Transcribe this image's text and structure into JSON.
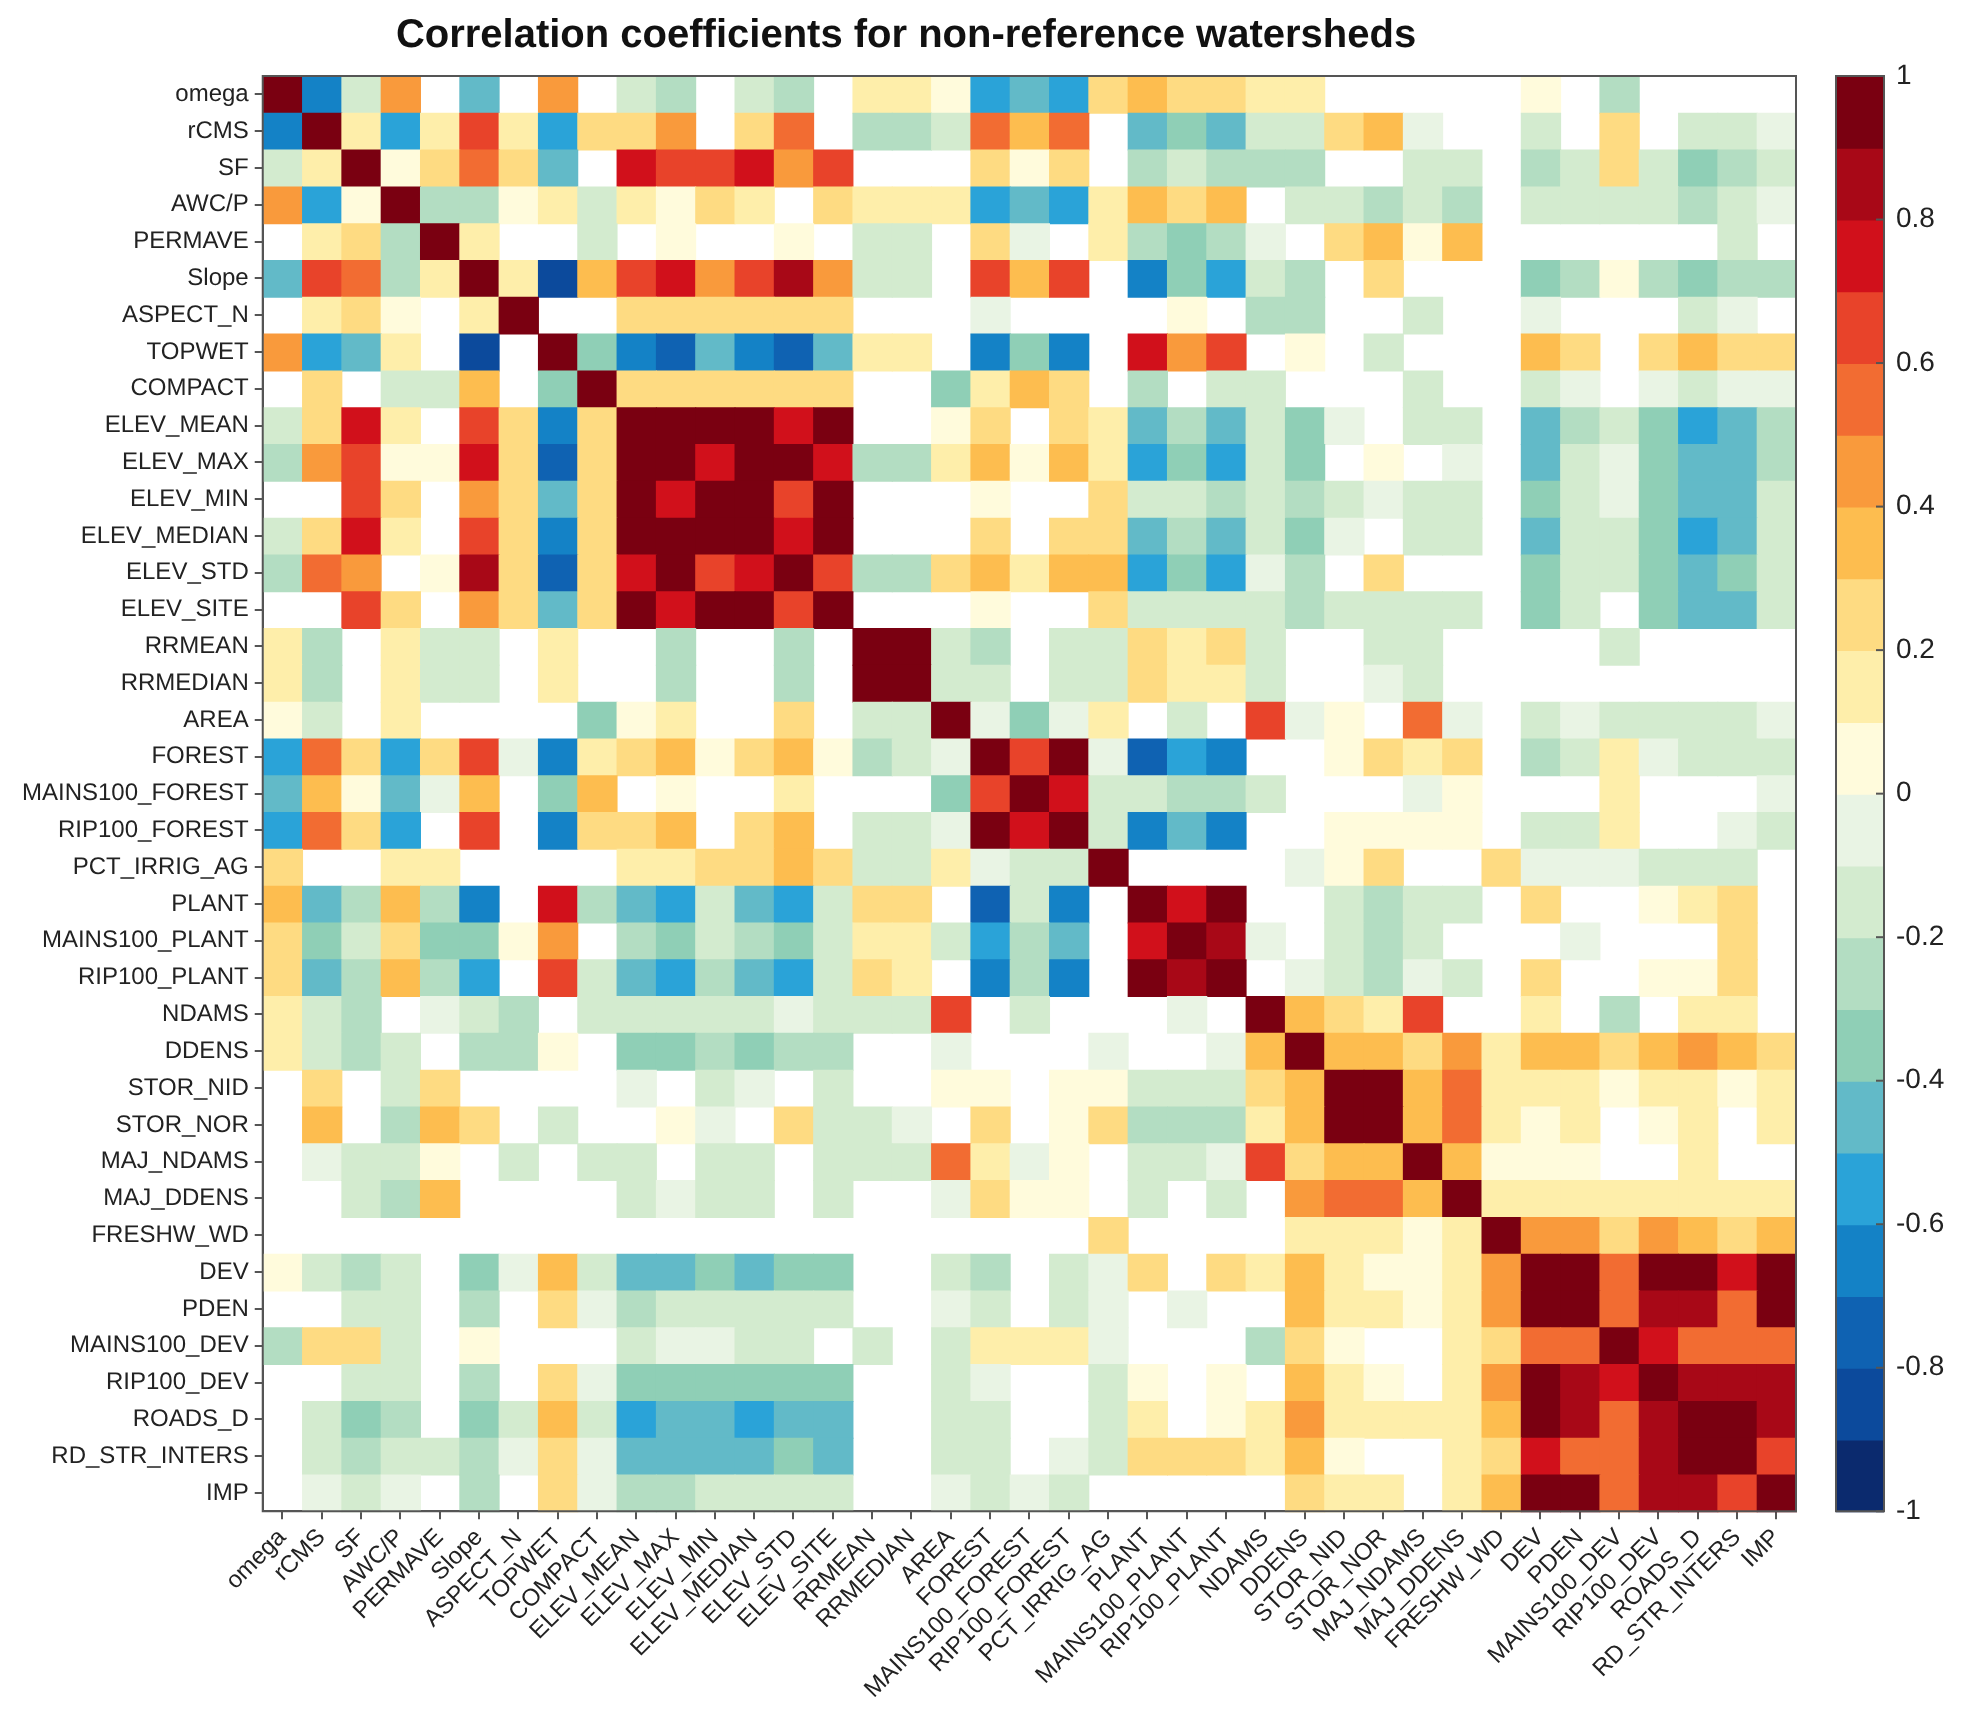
{
  "chart_data": {
    "type": "heatmap",
    "title": "Correlation coefficients for non-reference watersheds",
    "categories": [
      "omega",
      "rCMS",
      "SF",
      "AWC/P",
      "PERMAVE",
      "Slope",
      "ASPECT_N",
      "TOPWET",
      "COMPACT",
      "ELEV_MEAN",
      "ELEV_MAX",
      "ELEV_MIN",
      "ELEV_MEDIAN",
      "ELEV_STD",
      "ELEV_SITE",
      "RRMEAN",
      "RRMEDIAN",
      "AREA",
      "FOREST",
      "MAINS100_FOREST",
      "RIP100_FOREST",
      "PCT_IRRIG_AG",
      "PLANT",
      "MAINS100_PLANT",
      "RIP100_PLANT",
      "NDAMS",
      "DDENS",
      "STOR_NID",
      "STOR_NOR",
      "MAJ_NDAMS",
      "MAJ_DDENS",
      "FRESHW_WD",
      "DEV",
      "PDEN",
      "MAINS100_DEV",
      "RIP100_DEV",
      "ROADS_D",
      "RD_STR_INTERS",
      "IMP"
    ],
    "y_categories": [
      "omega",
      "rCMS",
      "SF",
      "AWC/P",
      "PERMAVE",
      "Slope",
      "ASPECT_N",
      "TOPWET",
      "COMPACT",
      "ELEV_MEAN",
      "ELEV_MAX",
      "ELEV_MIN",
      "ELEV_MEDIAN",
      "ELEV_STD",
      "ELEV_SITE",
      "RRMEAN",
      "RRMEDIAN",
      "AREA",
      "FOREST",
      "MAINS100_FOREST",
      "RIP100_FOREST",
      "PCT_IRRIG_AG",
      "PLANT",
      "MAINS100_PLANT",
      "RIP100_PLANT",
      "NDAMS",
      "DDENS",
      "STOR_NID",
      "STOR_NOR",
      "MAJ_NDAMS",
      "MAJ_DDENS",
      "FRESHW_WD",
      "DEV",
      "PDEN",
      "MAINS100_DEV",
      "RIP100_DEV",
      "ROADS_D",
      "RD_STR_INTERS",
      "IMP"
    ],
    "cells": [
      [
        1,
        -0.65,
        -0.15,
        0.45,
        null,
        -0.45,
        null,
        0.45,
        null,
        -0.15,
        -0.25,
        null,
        -0.15,
        -0.25,
        null,
        0.15,
        0.15,
        0.05,
        -0.55,
        -0.45,
        -0.55,
        0.25,
        0.35,
        0.25,
        0.25,
        0.15,
        0.15,
        null,
        null,
        null,
        null,
        null,
        0.05,
        null,
        -0.25,
        null,
        null,
        null,
        null
      ],
      [
        -0.65,
        1,
        0.15,
        -0.55,
        0.15,
        0.65,
        0.15,
        -0.55,
        0.25,
        0.25,
        0.45,
        null,
        0.25,
        0.55,
        null,
        -0.25,
        -0.25,
        -0.15,
        0.55,
        0.35,
        0.55,
        null,
        -0.45,
        -0.35,
        -0.45,
        -0.15,
        -0.15,
        0.25,
        0.35,
        -0.05,
        null,
        null,
        -0.15,
        null,
        0.25,
        null,
        -0.15,
        -0.15,
        -0.05
      ],
      [
        -0.15,
        0.15,
        1,
        0.05,
        0.25,
        0.55,
        0.25,
        -0.45,
        null,
        0.75,
        0.65,
        0.65,
        0.75,
        0.45,
        0.65,
        null,
        null,
        null,
        0.25,
        0.05,
        0.25,
        null,
        -0.25,
        -0.15,
        -0.25,
        -0.25,
        -0.25,
        null,
        null,
        -0.15,
        -0.15,
        null,
        -0.25,
        -0.15,
        0.25,
        -0.15,
        -0.35,
        -0.25,
        -0.15
      ],
      [
        0.45,
        -0.55,
        0.05,
        1,
        -0.25,
        -0.25,
        0.05,
        0.15,
        -0.15,
        0.15,
        0.05,
        0.25,
        0.15,
        null,
        0.25,
        0.15,
        0.15,
        0.15,
        -0.55,
        -0.45,
        -0.55,
        0.15,
        0.35,
        0.25,
        0.35,
        null,
        -0.15,
        -0.15,
        -0.25,
        -0.15,
        -0.25,
        null,
        -0.15,
        -0.15,
        -0.15,
        -0.15,
        -0.25,
        -0.15,
        -0.05
      ],
      [
        null,
        0.15,
        0.25,
        -0.25,
        1,
        0.15,
        null,
        null,
        -0.15,
        null,
        0.05,
        null,
        null,
        0.05,
        null,
        -0.15,
        -0.15,
        null,
        0.25,
        -0.05,
        null,
        0.15,
        -0.25,
        -0.35,
        -0.25,
        -0.05,
        null,
        0.25,
        0.35,
        0.05,
        0.35,
        null,
        null,
        null,
        null,
        null,
        null,
        -0.15,
        null
      ],
      [
        -0.45,
        0.65,
        0.55,
        -0.25,
        0.15,
        1,
        0.15,
        -0.85,
        0.35,
        0.65,
        0.75,
        0.45,
        0.65,
        0.85,
        0.45,
        -0.15,
        -0.15,
        null,
        0.65,
        0.35,
        0.65,
        null,
        -0.65,
        -0.35,
        -0.55,
        -0.15,
        -0.25,
        null,
        0.25,
        null,
        null,
        null,
        -0.35,
        -0.25,
        0.05,
        -0.25,
        -0.35,
        -0.25,
        -0.25
      ],
      [
        null,
        0.15,
        0.25,
        0.05,
        null,
        0.15,
        1,
        null,
        null,
        0.25,
        0.25,
        0.25,
        0.25,
        0.25,
        0.25,
        null,
        null,
        null,
        -0.05,
        null,
        null,
        null,
        null,
        0.05,
        null,
        -0.25,
        -0.25,
        null,
        null,
        -0.15,
        null,
        null,
        -0.05,
        null,
        null,
        null,
        -0.15,
        -0.05,
        null
      ],
      [
        0.45,
        -0.55,
        -0.45,
        0.15,
        null,
        -0.85,
        null,
        1,
        -0.35,
        -0.65,
        -0.75,
        -0.45,
        -0.65,
        -0.75,
        -0.45,
        0.15,
        0.15,
        null,
        -0.65,
        -0.35,
        -0.65,
        null,
        0.75,
        0.45,
        0.65,
        null,
        0.05,
        null,
        -0.15,
        null,
        null,
        null,
        0.35,
        0.25,
        null,
        0.25,
        0.35,
        0.25,
        0.25
      ],
      [
        null,
        0.25,
        null,
        -0.15,
        -0.15,
        0.35,
        null,
        -0.35,
        1,
        0.25,
        0.25,
        0.25,
        0.25,
        0.25,
        0.25,
        null,
        null,
        -0.35,
        0.15,
        0.35,
        0.25,
        null,
        -0.25,
        null,
        -0.15,
        -0.15,
        null,
        null,
        null,
        -0.15,
        null,
        null,
        -0.15,
        -0.05,
        null,
        -0.05,
        -0.15,
        -0.05,
        -0.05
      ],
      [
        -0.15,
        0.25,
        0.75,
        0.15,
        null,
        0.65,
        0.25,
        -0.65,
        0.25,
        1,
        0.95,
        0.95,
        0.95,
        0.75,
        0.95,
        null,
        null,
        0.05,
        0.25,
        null,
        0.25,
        0.15,
        -0.45,
        -0.25,
        -0.45,
        -0.15,
        -0.35,
        -0.05,
        null,
        -0.15,
        -0.15,
        null,
        -0.45,
        -0.25,
        -0.15,
        -0.35,
        -0.55,
        -0.45,
        -0.25
      ],
      [
        -0.25,
        0.45,
        0.65,
        0.05,
        0.05,
        0.75,
        0.25,
        -0.75,
        0.25,
        0.95,
        1,
        0.75,
        0.95,
        0.95,
        0.75,
        -0.25,
        -0.25,
        0.15,
        0.35,
        0.05,
        0.35,
        0.15,
        -0.55,
        -0.35,
        -0.55,
        -0.15,
        -0.35,
        null,
        0.05,
        null,
        -0.05,
        null,
        -0.45,
        -0.15,
        -0.05,
        -0.35,
        -0.45,
        -0.45,
        -0.25
      ],
      [
        null,
        null,
        0.65,
        0.25,
        null,
        0.45,
        0.25,
        -0.45,
        0.25,
        0.95,
        0.75,
        1,
        0.95,
        0.65,
        0.95,
        null,
        null,
        null,
        0.05,
        null,
        null,
        0.25,
        -0.15,
        -0.15,
        -0.25,
        -0.15,
        -0.25,
        -0.15,
        -0.05,
        -0.15,
        -0.15,
        null,
        -0.35,
        -0.15,
        -0.05,
        -0.35,
        -0.45,
        -0.45,
        -0.15
      ],
      [
        -0.15,
        0.25,
        0.75,
        0.15,
        null,
        0.65,
        0.25,
        -0.65,
        0.25,
        0.95,
        0.95,
        0.95,
        1,
        0.75,
        0.95,
        null,
        null,
        null,
        0.25,
        null,
        0.25,
        0.25,
        -0.45,
        -0.25,
        -0.45,
        -0.15,
        -0.35,
        -0.05,
        null,
        -0.15,
        -0.15,
        null,
        -0.45,
        -0.15,
        -0.15,
        -0.35,
        -0.55,
        -0.45,
        -0.15
      ],
      [
        -0.25,
        0.55,
        0.45,
        null,
        0.05,
        0.85,
        0.25,
        -0.75,
        0.25,
        0.75,
        0.95,
        0.65,
        0.75,
        1,
        0.65,
        -0.25,
        -0.25,
        0.25,
        0.35,
        0.15,
        0.35,
        0.35,
        -0.55,
        -0.35,
        -0.55,
        -0.05,
        -0.25,
        null,
        0.25,
        null,
        null,
        null,
        -0.35,
        -0.15,
        -0.15,
        -0.35,
        -0.45,
        -0.35,
        -0.15
      ],
      [
        null,
        null,
        0.65,
        0.25,
        null,
        0.45,
        0.25,
        -0.45,
        0.25,
        0.95,
        0.75,
        0.95,
        0.95,
        0.65,
        1,
        null,
        null,
        null,
        0.05,
        null,
        null,
        0.25,
        -0.15,
        -0.15,
        -0.15,
        -0.15,
        -0.25,
        -0.15,
        -0.15,
        -0.15,
        -0.15,
        null,
        -0.35,
        -0.15,
        null,
        -0.35,
        -0.45,
        -0.45,
        -0.15
      ],
      [
        0.15,
        -0.25,
        null,
        0.15,
        -0.15,
        -0.15,
        null,
        0.15,
        null,
        null,
        -0.25,
        null,
        null,
        -0.25,
        null,
        1,
        0.95,
        -0.15,
        -0.25,
        null,
        -0.15,
        -0.15,
        0.25,
        0.15,
        0.25,
        -0.15,
        null,
        null,
        -0.15,
        -0.15,
        null,
        null,
        null,
        null,
        -0.15,
        null,
        null,
        null,
        null
      ],
      [
        0.15,
        -0.25,
        null,
        0.15,
        -0.15,
        -0.15,
        null,
        0.15,
        null,
        null,
        -0.25,
        null,
        null,
        -0.25,
        null,
        0.95,
        1,
        -0.15,
        -0.15,
        null,
        -0.15,
        -0.15,
        0.25,
        0.15,
        0.15,
        -0.15,
        null,
        null,
        -0.05,
        -0.15,
        null,
        null,
        null,
        null,
        null,
        null,
        null,
        null,
        null
      ],
      [
        0.05,
        -0.15,
        null,
        0.15,
        null,
        null,
        null,
        null,
        -0.35,
        0.05,
        0.15,
        null,
        null,
        0.25,
        null,
        -0.15,
        -0.15,
        1,
        -0.05,
        -0.35,
        -0.05,
        0.15,
        null,
        -0.15,
        null,
        0.65,
        -0.05,
        0.05,
        null,
        0.55,
        -0.05,
        null,
        -0.15,
        -0.05,
        -0.15,
        -0.15,
        -0.15,
        -0.15,
        -0.05
      ],
      [
        -0.55,
        0.55,
        0.25,
        -0.55,
        0.25,
        0.65,
        -0.05,
        -0.65,
        0.15,
        0.25,
        0.35,
        0.05,
        0.25,
        0.35,
        0.05,
        -0.25,
        -0.15,
        -0.05,
        1,
        0.65,
        0.95,
        -0.05,
        -0.75,
        -0.55,
        -0.65,
        null,
        null,
        0.05,
        0.25,
        0.15,
        0.25,
        null,
        -0.25,
        -0.15,
        0.15,
        -0.05,
        -0.15,
        -0.15,
        -0.15
      ],
      [
        -0.45,
        0.35,
        0.05,
        -0.45,
        -0.05,
        0.35,
        null,
        -0.35,
        0.35,
        null,
        0.05,
        null,
        null,
        0.15,
        null,
        null,
        null,
        -0.35,
        0.65,
        1,
        0.75,
        -0.15,
        -0.15,
        -0.25,
        -0.25,
        -0.15,
        null,
        null,
        null,
        -0.05,
        0.05,
        null,
        null,
        null,
        0.15,
        null,
        null,
        null,
        -0.05
      ],
      [
        -0.55,
        0.55,
        0.25,
        -0.55,
        null,
        0.65,
        null,
        -0.65,
        0.25,
        0.25,
        0.35,
        null,
        0.25,
        0.35,
        null,
        -0.15,
        -0.15,
        -0.05,
        0.95,
        0.75,
        1,
        -0.15,
        -0.65,
        -0.45,
        -0.65,
        null,
        null,
        0.05,
        0.05,
        0.05,
        0.05,
        null,
        -0.15,
        -0.15,
        0.15,
        null,
        null,
        -0.05,
        -0.15
      ],
      [
        0.25,
        null,
        null,
        0.15,
        0.15,
        null,
        null,
        null,
        null,
        0.15,
        0.15,
        0.25,
        0.25,
        0.35,
        0.25,
        -0.15,
        -0.15,
        0.15,
        -0.05,
        -0.15,
        -0.15,
        1,
        null,
        null,
        null,
        null,
        -0.05,
        0.05,
        0.25,
        null,
        null,
        0.25,
        -0.05,
        -0.05,
        -0.05,
        -0.15,
        -0.15,
        -0.15,
        null
      ],
      [
        0.35,
        -0.45,
        -0.25,
        0.35,
        -0.25,
        -0.65,
        null,
        0.75,
        -0.25,
        -0.45,
        -0.55,
        -0.15,
        -0.45,
        -0.55,
        -0.15,
        0.25,
        0.25,
        null,
        -0.75,
        -0.15,
        -0.65,
        null,
        1,
        0.75,
        0.95,
        null,
        null,
        -0.15,
        -0.25,
        -0.15,
        -0.15,
        null,
        0.25,
        null,
        null,
        0.05,
        0.15,
        0.25,
        null
      ],
      [
        0.25,
        -0.35,
        -0.15,
        0.25,
        -0.35,
        -0.35,
        0.05,
        0.45,
        null,
        -0.25,
        -0.35,
        -0.15,
        -0.25,
        -0.35,
        -0.15,
        0.15,
        0.15,
        -0.15,
        -0.55,
        -0.25,
        -0.45,
        null,
        0.75,
        1,
        0.85,
        -0.05,
        null,
        -0.15,
        -0.25,
        -0.15,
        null,
        null,
        null,
        -0.05,
        null,
        null,
        null,
        0.25,
        null
      ],
      [
        0.25,
        -0.45,
        -0.25,
        0.35,
        -0.25,
        -0.55,
        null,
        0.65,
        -0.15,
        -0.45,
        -0.55,
        -0.25,
        -0.45,
        -0.55,
        -0.15,
        0.25,
        0.15,
        null,
        -0.65,
        -0.25,
        -0.65,
        null,
        0.95,
        0.85,
        1,
        null,
        -0.05,
        -0.15,
        -0.25,
        -0.05,
        -0.15,
        null,
        0.25,
        null,
        null,
        0.05,
        0.05,
        0.25,
        null
      ],
      [
        0.15,
        -0.15,
        -0.25,
        null,
        -0.05,
        -0.15,
        -0.25,
        null,
        -0.15,
        -0.15,
        -0.15,
        -0.15,
        -0.15,
        -0.05,
        -0.15,
        -0.15,
        -0.15,
        0.65,
        null,
        -0.15,
        null,
        null,
        null,
        -0.05,
        null,
        1,
        0.35,
        0.25,
        0.15,
        0.65,
        null,
        null,
        0.15,
        null,
        -0.25,
        null,
        0.15,
        0.15,
        null
      ],
      [
        0.15,
        -0.15,
        -0.25,
        -0.15,
        null,
        -0.25,
        -0.25,
        0.05,
        null,
        -0.35,
        -0.35,
        -0.25,
        -0.35,
        -0.25,
        -0.25,
        null,
        null,
        -0.05,
        null,
        null,
        null,
        -0.05,
        null,
        null,
        -0.05,
        0.35,
        1,
        0.35,
        0.35,
        0.25,
        0.45,
        0.15,
        0.35,
        0.35,
        0.25,
        0.35,
        0.45,
        0.35,
        0.25
      ],
      [
        null,
        0.25,
        null,
        -0.15,
        0.25,
        null,
        null,
        null,
        null,
        -0.05,
        null,
        -0.15,
        -0.05,
        null,
        -0.15,
        null,
        null,
        0.05,
        0.05,
        null,
        0.05,
        0.05,
        -0.15,
        -0.15,
        -0.15,
        0.25,
        0.35,
        1,
        0.95,
        0.35,
        0.55,
        0.15,
        0.15,
        0.15,
        0.05,
        0.15,
        0.15,
        0.05,
        0.15
      ],
      [
        null,
        0.35,
        null,
        -0.25,
        0.35,
        0.25,
        null,
        -0.15,
        null,
        null,
        0.05,
        -0.05,
        null,
        0.25,
        -0.15,
        -0.15,
        -0.05,
        null,
        0.25,
        null,
        0.05,
        0.25,
        -0.25,
        -0.25,
        -0.25,
        0.15,
        0.35,
        0.95,
        1,
        0.35,
        0.55,
        0.15,
        0.05,
        0.15,
        null,
        0.05,
        0.15,
        null,
        0.15
      ],
      [
        null,
        -0.05,
        -0.15,
        -0.15,
        0.05,
        null,
        -0.15,
        null,
        -0.15,
        -0.15,
        null,
        -0.15,
        -0.15,
        null,
        -0.15,
        -0.15,
        -0.15,
        0.55,
        0.15,
        -0.05,
        0.05,
        null,
        -0.15,
        -0.15,
        -0.05,
        0.65,
        0.25,
        0.35,
        0.35,
        1,
        0.35,
        0.05,
        0.05,
        0.05,
        null,
        null,
        0.15,
        null,
        null
      ],
      [
        null,
        null,
        -0.15,
        -0.25,
        0.35,
        null,
        null,
        null,
        null,
        -0.15,
        -0.05,
        -0.15,
        -0.15,
        null,
        -0.15,
        null,
        null,
        -0.05,
        0.25,
        0.05,
        0.05,
        null,
        -0.15,
        null,
        -0.15,
        null,
        0.45,
        0.55,
        0.55,
        0.35,
        1,
        0.15,
        0.15,
        0.15,
        0.15,
        0.15,
        0.15,
        0.15,
        0.15
      ],
      [
        null,
        null,
        null,
        null,
        null,
        null,
        null,
        null,
        null,
        null,
        null,
        null,
        null,
        null,
        null,
        null,
        null,
        null,
        null,
        null,
        null,
        0.25,
        null,
        null,
        null,
        null,
        0.15,
        0.15,
        0.15,
        0.05,
        0.15,
        1,
        0.45,
        0.45,
        0.25,
        0.45,
        0.35,
        0.25,
        0.35
      ],
      [
        0.05,
        -0.15,
        -0.25,
        -0.15,
        null,
        -0.35,
        -0.05,
        0.35,
        -0.15,
        -0.45,
        -0.45,
        -0.35,
        -0.45,
        -0.35,
        -0.35,
        null,
        null,
        -0.15,
        -0.25,
        null,
        -0.15,
        -0.05,
        0.25,
        null,
        0.25,
        0.15,
        0.35,
        0.15,
        0.05,
        0.05,
        0.15,
        0.45,
        1,
        0.95,
        0.55,
        0.95,
        0.95,
        0.75,
        0.95
      ],
      [
        null,
        null,
        -0.15,
        -0.15,
        null,
        -0.25,
        null,
        0.25,
        -0.05,
        -0.25,
        -0.15,
        -0.15,
        -0.15,
        -0.15,
        -0.15,
        null,
        null,
        -0.05,
        -0.15,
        null,
        -0.15,
        -0.05,
        null,
        -0.05,
        null,
        null,
        0.35,
        0.15,
        0.15,
        0.05,
        0.15,
        0.45,
        0.95,
        1,
        0.55,
        0.85,
        0.85,
        0.55,
        0.95
      ],
      [
        -0.25,
        0.25,
        0.25,
        -0.15,
        null,
        0.05,
        null,
        null,
        null,
        -0.15,
        -0.05,
        -0.05,
        -0.15,
        -0.15,
        null,
        -0.15,
        null,
        -0.15,
        0.15,
        0.15,
        0.15,
        -0.05,
        null,
        null,
        null,
        -0.25,
        0.25,
        0.05,
        null,
        null,
        0.15,
        0.25,
        0.55,
        0.55,
        1,
        0.75,
        0.55,
        0.55,
        0.55
      ],
      [
        null,
        null,
        -0.15,
        -0.15,
        null,
        -0.25,
        null,
        0.25,
        -0.05,
        -0.35,
        -0.35,
        -0.35,
        -0.35,
        -0.35,
        -0.35,
        null,
        null,
        -0.15,
        -0.05,
        null,
        null,
        -0.15,
        0.05,
        null,
        0.05,
        null,
        0.35,
        0.15,
        0.05,
        null,
        0.15,
        0.45,
        0.95,
        0.85,
        0.75,
        1,
        0.85,
        0.85,
        0.85
      ],
      [
        null,
        -0.15,
        -0.35,
        -0.25,
        null,
        -0.35,
        -0.15,
        0.35,
        -0.15,
        -0.55,
        -0.45,
        -0.45,
        -0.55,
        -0.45,
        -0.45,
        null,
        null,
        -0.15,
        -0.15,
        null,
        null,
        -0.15,
        0.15,
        null,
        0.05,
        0.15,
        0.45,
        0.15,
        0.15,
        0.15,
        0.15,
        0.35,
        0.95,
        0.85,
        0.55,
        0.85,
        1,
        0.95,
        0.85
      ],
      [
        null,
        -0.15,
        -0.25,
        -0.15,
        -0.15,
        -0.25,
        -0.05,
        0.25,
        -0.05,
        -0.45,
        -0.45,
        -0.45,
        -0.45,
        -0.35,
        -0.45,
        null,
        null,
        -0.15,
        -0.15,
        null,
        -0.05,
        -0.15,
        0.25,
        0.25,
        0.25,
        0.15,
        0.35,
        0.05,
        null,
        null,
        0.15,
        0.25,
        0.75,
        0.55,
        0.55,
        0.85,
        0.95,
        1,
        0.65
      ],
      [
        null,
        -0.05,
        -0.15,
        -0.05,
        null,
        -0.25,
        null,
        0.25,
        -0.05,
        -0.25,
        -0.25,
        -0.15,
        -0.15,
        -0.15,
        -0.15,
        null,
        null,
        -0.05,
        -0.15,
        -0.05,
        -0.15,
        null,
        null,
        null,
        null,
        null,
        0.25,
        0.15,
        0.15,
        null,
        0.15,
        0.35,
        0.95,
        0.95,
        0.55,
        0.85,
        0.85,
        0.65,
        1
      ]
    ],
    "clim": [
      -1,
      1
    ],
    "cticks": [
      -1,
      -0.8,
      -0.6,
      -0.4,
      -0.2,
      0,
      0.2,
      0.4,
      0.6,
      0.8,
      1
    ]
  }
}
